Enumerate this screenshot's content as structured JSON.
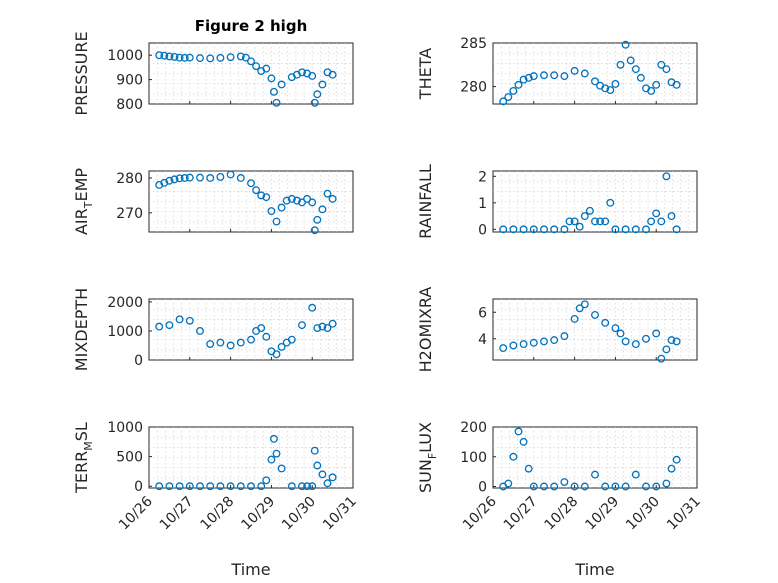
{
  "figure": {
    "title": "Figure 2 high"
  },
  "chart_data": [
    {
      "type": "scatter",
      "ylabel": "PRESSURE",
      "ylim": [
        800,
        1050
      ],
      "yticks": [
        "800",
        "900",
        "1000"
      ],
      "grid": true,
      "x": [
        "10/26 06:00",
        "10/26 09:00",
        "10/26 12:00",
        "10/26 15:00",
        "10/26 18:00",
        "10/26 21:00",
        "10/27 00:00",
        "10/27 06:00",
        "10/27 12:00",
        "10/27 18:00",
        "10/28 00:00",
        "10/28 06:00",
        "10/28 09:00",
        "10/28 12:00",
        "10/28 15:00",
        "10/28 18:00",
        "10/28 21:00",
        "10/29 00:00",
        "10/29 01:30",
        "10/29 03:00",
        "10/29 06:00",
        "10/29 12:00",
        "10/29 15:00",
        "10/29 18:00",
        "10/29 21:00",
        "10/30 00:00",
        "10/30 01:30",
        "10/30 03:00",
        "10/30 06:00",
        "10/30 09:00",
        "10/30 12:00"
      ],
      "y": [
        1000,
        998,
        995,
        993,
        990,
        989,
        990,
        988,
        987,
        989,
        992,
        995,
        990,
        975,
        955,
        935,
        945,
        905,
        850,
        805,
        880,
        910,
        920,
        930,
        925,
        915,
        805,
        840,
        880,
        930,
        920
      ]
    },
    {
      "type": "scatter",
      "ylabel": "THETA",
      "ylim": [
        278,
        285
      ],
      "yticks": [
        "280",
        "285"
      ],
      "grid": true,
      "x": [
        "10/26 06:00",
        "10/26 09:00",
        "10/26 12:00",
        "10/26 15:00",
        "10/26 18:00",
        "10/26 21:00",
        "10/27 00:00",
        "10/27 06:00",
        "10/27 12:00",
        "10/27 18:00",
        "10/28 00:00",
        "10/28 06:00",
        "10/28 12:00",
        "10/28 15:00",
        "10/28 18:00",
        "10/28 21:00",
        "10/29 00:00",
        "10/29 03:00",
        "10/29 06:00",
        "10/29 09:00",
        "10/29 12:00",
        "10/29 15:00",
        "10/29 18:00",
        "10/29 21:00",
        "10/30 00:00",
        "10/30 03:00",
        "10/30 06:00",
        "10/30 09:00",
        "10/30 12:00"
      ],
      "y": [
        278.3,
        278.8,
        279.5,
        280.2,
        280.8,
        281.0,
        281.2,
        281.3,
        281.3,
        281.2,
        281.8,
        281.5,
        280.6,
        280.1,
        279.8,
        279.6,
        280.3,
        282.5,
        284.8,
        283.0,
        282.0,
        281.0,
        279.8,
        279.5,
        280.2,
        282.5,
        282.0,
        280.5,
        280.2
      ]
    },
    {
      "type": "scatter",
      "ylabel": "AIR_TEMP",
      "ylim": [
        264.5,
        282
      ],
      "yticks": [
        "270",
        "280"
      ],
      "grid": true,
      "x": [
        "10/26 06:00",
        "10/26 09:00",
        "10/26 12:00",
        "10/26 15:00",
        "10/26 18:00",
        "10/26 21:00",
        "10/27 00:00",
        "10/27 06:00",
        "10/27 12:00",
        "10/27 18:00",
        "10/28 00:00",
        "10/28 06:00",
        "10/28 12:00",
        "10/28 15:00",
        "10/28 18:00",
        "10/28 21:00",
        "10/29 00:00",
        "10/29 03:00",
        "10/29 06:00",
        "10/29 09:00",
        "10/29 12:00",
        "10/29 15:00",
        "10/29 18:00",
        "10/29 21:00",
        "10/30 00:00",
        "10/30 01:30",
        "10/30 03:00",
        "10/30 06:00",
        "10/30 09:00",
        "10/30 12:00"
      ],
      "y": [
        278.0,
        278.6,
        279.2,
        279.6,
        279.9,
        280.0,
        280.1,
        280.1,
        280.0,
        280.3,
        281.0,
        280.0,
        278.5,
        276.5,
        275.0,
        274.5,
        270.5,
        267.5,
        271.5,
        273.5,
        274.0,
        273.5,
        273.0,
        274.0,
        273.0,
        265.0,
        268.0,
        271.0,
        275.5,
        274.0
      ]
    },
    {
      "type": "scatter",
      "ylabel": "RAINFALL",
      "ylim": [
        -0.1,
        2.2
      ],
      "yticks": [
        "0",
        "1",
        "2"
      ],
      "grid": true,
      "x": [
        "10/26 06:00",
        "10/26 12:00",
        "10/26 18:00",
        "10/27 00:00",
        "10/27 06:00",
        "10/27 12:00",
        "10/27 18:00",
        "10/27 21:00",
        "10/28 00:00",
        "10/28 03:00",
        "10/28 06:00",
        "10/28 09:00",
        "10/28 12:00",
        "10/28 15:00",
        "10/28 18:00",
        "10/28 21:00",
        "10/29 00:00",
        "10/29 06:00",
        "10/29 12:00",
        "10/29 18:00",
        "10/29 21:00",
        "10/30 00:00",
        "10/30 03:00",
        "10/30 06:00",
        "10/30 09:00",
        "10/30 12:00"
      ],
      "y": [
        0,
        0,
        0,
        0,
        0,
        0,
        0,
        0.3,
        0.3,
        0.1,
        0.5,
        0.7,
        0.3,
        0.3,
        0.3,
        1.0,
        0,
        0,
        0,
        0,
        0.3,
        0.6,
        0.3,
        2.0,
        0.5,
        0
      ]
    },
    {
      "type": "scatter",
      "ylabel": "MIXDEPTH",
      "ylim": [
        0,
        2100
      ],
      "yticks": [
        "0",
        "1000",
        "2000"
      ],
      "grid": true,
      "x": [
        "10/26 06:00",
        "10/26 12:00",
        "10/26 18:00",
        "10/27 00:00",
        "10/27 06:00",
        "10/27 12:00",
        "10/27 18:00",
        "10/28 00:00",
        "10/28 06:00",
        "10/28 12:00",
        "10/28 15:00",
        "10/28 18:00",
        "10/28 21:00",
        "10/29 00:00",
        "10/29 03:00",
        "10/29 06:00",
        "10/29 09:00",
        "10/29 12:00",
        "10/29 18:00",
        "10/30 00:00",
        "10/30 03:00",
        "10/30 06:00",
        "10/30 09:00",
        "10/30 12:00"
      ],
      "y": [
        1150,
        1200,
        1400,
        1350,
        1000,
        550,
        600,
        500,
        600,
        700,
        1000,
        1100,
        800,
        300,
        200,
        450,
        600,
        700,
        1200,
        1800,
        1100,
        1150,
        1100,
        1250
      ]
    },
    {
      "type": "scatter",
      "ylabel": "H2OMIXRA",
      "ylim": [
        2.4,
        7.0
      ],
      "yticks": [
        "4",
        "6"
      ],
      "grid": true,
      "x": [
        "10/26 06:00",
        "10/26 12:00",
        "10/26 18:00",
        "10/27 00:00",
        "10/27 06:00",
        "10/27 12:00",
        "10/27 18:00",
        "10/28 00:00",
        "10/28 03:00",
        "10/28 06:00",
        "10/28 12:00",
        "10/28 18:00",
        "10/29 00:00",
        "10/29 03:00",
        "10/29 06:00",
        "10/29 12:00",
        "10/29 18:00",
        "10/30 00:00",
        "10/30 03:00",
        "10/30 06:00",
        "10/30 09:00",
        "10/30 12:00"
      ],
      "y": [
        3.3,
        3.5,
        3.6,
        3.7,
        3.8,
        3.9,
        4.2,
        5.5,
        6.3,
        6.6,
        5.8,
        5.2,
        4.8,
        4.4,
        3.8,
        3.6,
        4.0,
        4.4,
        2.5,
        3.2,
        3.9,
        3.8
      ]
    },
    {
      "type": "scatter",
      "ylabel": "TERR_MSL",
      "ylim": [
        -30,
        1000
      ],
      "yticks": [
        "0",
        "500",
        "1000"
      ],
      "grid": true,
      "x": [
        "10/26 06:00",
        "10/26 12:00",
        "10/26 18:00",
        "10/27 00:00",
        "10/27 06:00",
        "10/27 12:00",
        "10/27 18:00",
        "10/28 00:00",
        "10/28 06:00",
        "10/28 12:00",
        "10/28 18:00",
        "10/28 21:00",
        "10/29 00:00",
        "10/29 01:30",
        "10/29 03:00",
        "10/29 06:00",
        "10/29 12:00",
        "10/29 18:00",
        "10/29 21:00",
        "10/30 00:00",
        "10/30 01:30",
        "10/30 03:00",
        "10/30 06:00",
        "10/30 09:00",
        "10/30 12:00"
      ],
      "y": [
        0,
        0,
        0,
        0,
        0,
        0,
        0,
        0,
        0,
        0,
        0,
        100,
        450,
        800,
        550,
        300,
        0,
        0,
        0,
        0,
        600,
        350,
        200,
        50,
        150
      ]
    },
    {
      "type": "scatter",
      "ylabel": "SUN_FLUX",
      "ylim": [
        -5,
        200
      ],
      "yticks": [
        "0",
        "100",
        "200"
      ],
      "grid": true,
      "x": [
        "10/26 06:00",
        "10/26 09:00",
        "10/26 12:00",
        "10/26 15:00",
        "10/26 18:00",
        "10/26 21:00",
        "10/27 00:00",
        "10/27 06:00",
        "10/27 12:00",
        "10/27 18:00",
        "10/28 00:00",
        "10/28 06:00",
        "10/28 12:00",
        "10/28 18:00",
        "10/29 00:00",
        "10/29 06:00",
        "10/29 12:00",
        "10/29 18:00",
        "10/30 00:00",
        "10/30 06:00",
        "10/30 09:00",
        "10/30 12:00"
      ],
      "y": [
        0,
        10,
        100,
        185,
        150,
        60,
        0,
        0,
        0,
        15,
        0,
        0,
        40,
        0,
        0,
        0,
        40,
        0,
        0,
        10,
        60,
        90
      ]
    }
  ],
  "x_axis": {
    "label": "Time",
    "ticks": [
      "10/26",
      "10/27",
      "10/28",
      "10/29",
      "10/30",
      "10/31"
    ],
    "range": [
      "10/26",
      "10/31"
    ]
  }
}
